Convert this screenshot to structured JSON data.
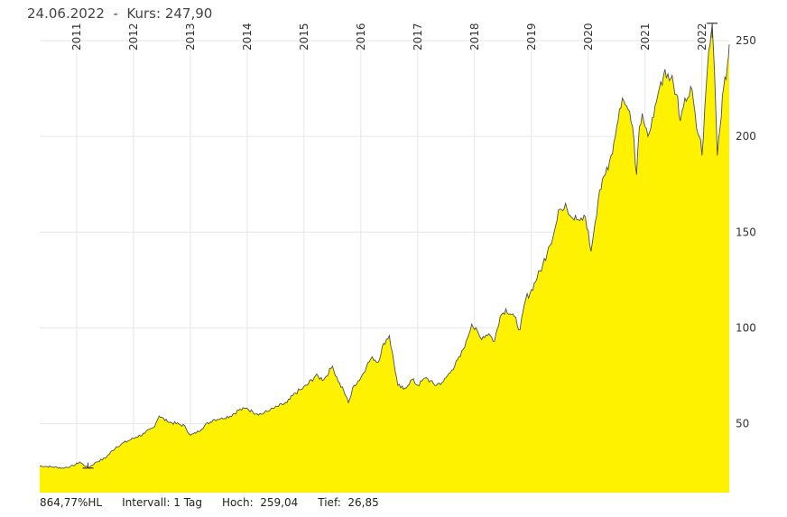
{
  "header": {
    "date": "24.06.2022",
    "separator": "-",
    "price_label": "Kurs:",
    "price_value": "247,90"
  },
  "footer": {
    "performance": "864,77%HL",
    "interval": "Intervall: 1 Tag",
    "high": "Hoch:  259,04",
    "low": "Tief:  26,85"
  },
  "chart_data": {
    "type": "area",
    "title": "24.06.2022 - Kurs: 247,90",
    "x_unit": "year",
    "xlim": [
      2010.35,
      2022.48
    ],
    "ylim": [
      14,
      258
    ],
    "x_ticks": [
      {
        "value": 2011,
        "label": "2011"
      },
      {
        "value": 2012,
        "label": "2012"
      },
      {
        "value": 2013,
        "label": "2013"
      },
      {
        "value": 2014,
        "label": "2014"
      },
      {
        "value": 2015,
        "label": "2015"
      },
      {
        "value": 2016,
        "label": "2016"
      },
      {
        "value": 2017,
        "label": "2017"
      },
      {
        "value": 2018,
        "label": "2018"
      },
      {
        "value": 2019,
        "label": "2019"
      },
      {
        "value": 2020,
        "label": "2020"
      },
      {
        "value": 2021,
        "label": "2021"
      },
      {
        "value": 2022,
        "label": "2022"
      }
    ],
    "y_ticks": [
      {
        "value": 50,
        "label": "50"
      },
      {
        "value": 100,
        "label": "100"
      },
      {
        "value": 150,
        "label": "150"
      },
      {
        "value": 200,
        "label": "200"
      },
      {
        "value": 250,
        "label": "250"
      }
    ],
    "series": [
      {
        "name": "Kurs",
        "fill": "#FFF200",
        "line": "#4a4f5a",
        "points": [
          [
            2010.35,
            28
          ],
          [
            2010.55,
            27.5
          ],
          [
            2010.75,
            26.9
          ],
          [
            2010.95,
            28
          ],
          [
            2011.05,
            30
          ],
          [
            2011.2,
            27
          ],
          [
            2011.35,
            30
          ],
          [
            2011.5,
            32
          ],
          [
            2011.7,
            38
          ],
          [
            2011.9,
            41
          ],
          [
            2012.05,
            43
          ],
          [
            2012.2,
            45
          ],
          [
            2012.35,
            48
          ],
          [
            2012.45,
            54
          ],
          [
            2012.6,
            51
          ],
          [
            2012.75,
            50
          ],
          [
            2012.9,
            49
          ],
          [
            2013.0,
            44
          ],
          [
            2013.1,
            45
          ],
          [
            2013.25,
            49
          ],
          [
            2013.4,
            52
          ],
          [
            2013.55,
            53
          ],
          [
            2013.7,
            54
          ],
          [
            2013.85,
            57
          ],
          [
            2014.0,
            58
          ],
          [
            2014.1,
            56
          ],
          [
            2014.25,
            55
          ],
          [
            2014.4,
            57
          ],
          [
            2014.55,
            59
          ],
          [
            2014.7,
            61
          ],
          [
            2014.85,
            66
          ],
          [
            2014.95,
            68
          ],
          [
            2015.05,
            70
          ],
          [
            2015.2,
            75
          ],
          [
            2015.35,
            73
          ],
          [
            2015.5,
            80
          ],
          [
            2015.6,
            72
          ],
          [
            2015.7,
            67
          ],
          [
            2015.78,
            61
          ],
          [
            2015.88,
            70
          ],
          [
            2016.0,
            74
          ],
          [
            2016.1,
            80
          ],
          [
            2016.2,
            85
          ],
          [
            2016.3,
            82
          ],
          [
            2016.4,
            92
          ],
          [
            2016.5,
            96
          ],
          [
            2016.58,
            82
          ],
          [
            2016.65,
            70
          ],
          [
            2016.75,
            68
          ],
          [
            2016.9,
            73
          ],
          [
            2017.0,
            70
          ],
          [
            2017.15,
            74
          ],
          [
            2017.3,
            70
          ],
          [
            2017.45,
            72
          ],
          [
            2017.6,
            78
          ],
          [
            2017.75,
            85
          ],
          [
            2017.85,
            93
          ],
          [
            2017.95,
            102
          ],
          [
            2018.1,
            95
          ],
          [
            2018.25,
            97
          ],
          [
            2018.35,
            93
          ],
          [
            2018.45,
            106
          ],
          [
            2018.55,
            110
          ],
          [
            2018.7,
            106
          ],
          [
            2018.8,
            99
          ],
          [
            2018.9,
            115
          ],
          [
            2019.0,
            120
          ],
          [
            2019.1,
            126
          ],
          [
            2019.2,
            133
          ],
          [
            2019.3,
            142
          ],
          [
            2019.4,
            150
          ],
          [
            2019.5,
            162
          ],
          [
            2019.6,
            165
          ],
          [
            2019.7,
            158
          ],
          [
            2019.85,
            156
          ],
          [
            2019.95,
            158
          ],
          [
            2020.05,
            140
          ],
          [
            2020.12,
            155
          ],
          [
            2020.2,
            172
          ],
          [
            2020.3,
            180
          ],
          [
            2020.4,
            190
          ],
          [
            2020.5,
            205
          ],
          [
            2020.6,
            220
          ],
          [
            2020.7,
            214
          ],
          [
            2020.78,
            205
          ],
          [
            2020.85,
            180
          ],
          [
            2020.9,
            205
          ],
          [
            2020.95,
            212
          ],
          [
            2021.0,
            205
          ],
          [
            2021.05,
            200
          ],
          [
            2021.15,
            210
          ],
          [
            2021.25,
            225
          ],
          [
            2021.35,
            235
          ],
          [
            2021.45,
            230
          ],
          [
            2021.55,
            222
          ],
          [
            2021.62,
            208
          ],
          [
            2021.7,
            220
          ],
          [
            2021.8,
            226
          ],
          [
            2021.88,
            212
          ],
          [
            2021.95,
            200
          ],
          [
            2022.0,
            190
          ],
          [
            2022.05,
            215
          ],
          [
            2022.12,
            245
          ],
          [
            2022.18,
            258
          ],
          [
            2022.22,
            235
          ],
          [
            2022.27,
            190
          ],
          [
            2022.32,
            205
          ],
          [
            2022.38,
            225
          ],
          [
            2022.45,
            238
          ],
          [
            2022.48,
            248
          ]
        ]
      }
    ],
    "markers": [
      {
        "label": "Tief",
        "x": 2011.2,
        "y": 26.85
      },
      {
        "label": "Hoch",
        "x": 2022.18,
        "y": 259.04
      }
    ]
  }
}
